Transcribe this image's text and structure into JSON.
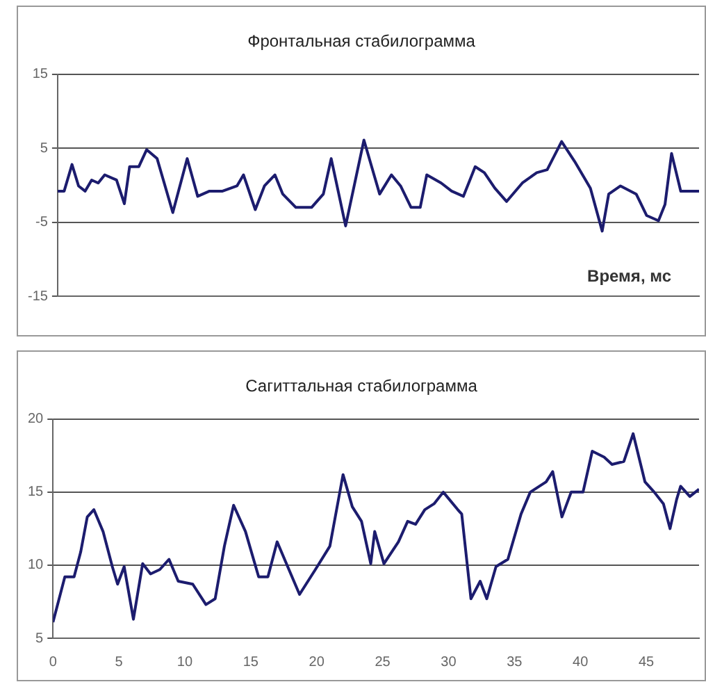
{
  "chart_data": [
    {
      "type": "line",
      "title": "Фронтальная стабилограмма",
      "xlabel": "Время, мс",
      "xlim": [
        0,
        49
      ],
      "ylim": [
        -15,
        15
      ],
      "yticks": [
        -15,
        -5,
        5,
        15
      ],
      "grid": "y",
      "legend": false,
      "tick_labels": "y",
      "marker": "none",
      "x": [
        0,
        0.5,
        1.1,
        1.6,
        2.1,
        2.6,
        3.1,
        3.6,
        4.5,
        5.1,
        5.5,
        6.2,
        6.8,
        7.6,
        8.8,
        9.9,
        10.7,
        11.6,
        12.6,
        13.7,
        14.2,
        15.1,
        15.8,
        16.6,
        17.2,
        18.2,
        19.4,
        20.3,
        20.9,
        22,
        23.4,
        24.6,
        25.5,
        26.2,
        27,
        27.7,
        28.2,
        29.3,
        30.1,
        31,
        31.9,
        32.6,
        33.4,
        34.3,
        35.5,
        36.6,
        37.4,
        38.5,
        39.5,
        40.7,
        41.6,
        42.1,
        43,
        44.2,
        45,
        45.9,
        46.4,
        46.9,
        47.6,
        49
      ],
      "series": [
        {
          "color": "#1c1c6e",
          "values": [
            -0.8,
            -0.8,
            2.8,
            -0.1,
            -0.8,
            0.7,
            0.3,
            1.4,
            0.7,
            -2.5,
            2.5,
            2.5,
            4.8,
            3.6,
            -3.7,
            3.6,
            -1.5,
            -0.8,
            -0.8,
            -0.1,
            1.4,
            -3.3,
            -0.1,
            1.4,
            -1.2,
            -3.0,
            -3.0,
            -1.2,
            3.6,
            -5.5,
            6.1,
            -1.2,
            1.4,
            -0.1,
            -3.0,
            -3.0,
            1.4,
            0.3,
            -0.8,
            -1.5,
            2.5,
            1.7,
            -0.4,
            -2.2,
            0.3,
            1.7,
            2.1,
            5.9,
            3.2,
            -0.4,
            -6.2,
            -1.2,
            -0.1,
            -1.2,
            -4.1,
            -4.8,
            -2.6,
            4.3,
            -0.8,
            -0.8
          ]
        }
      ]
    },
    {
      "type": "line",
      "title": "Сагиттальная стабилограмма",
      "xlim": [
        0,
        49
      ],
      "xticks": [
        0,
        5,
        10,
        15,
        20,
        25,
        30,
        35,
        40,
        45
      ],
      "ylim": [
        5,
        20
      ],
      "yticks": [
        5,
        10,
        15,
        20
      ],
      "grid": "y",
      "legend": false,
      "marker": "none",
      "x": [
        0,
        0.9,
        1.6,
        2.1,
        2.6,
        3.1,
        3.8,
        4.5,
        4.9,
        5.4,
        6.1,
        6.8,
        7.4,
        8.1,
        8.8,
        9.5,
        10.6,
        11.6,
        12.3,
        13,
        13.7,
        14.6,
        15.6,
        16.3,
        17,
        17.8,
        18.7,
        19.9,
        21,
        22,
        22.7,
        23.4,
        24.1,
        24.4,
        25.1,
        26.2,
        26.9,
        27.5,
        28.2,
        28.9,
        29.6,
        30.7,
        31,
        31.7,
        32.4,
        32.9,
        33.6,
        34.5,
        35.5,
        36.2,
        37.4,
        37.9,
        38.6,
        39.3,
        40.2,
        40.9,
        41.8,
        42.4,
        43.3,
        44,
        44.9,
        45.6,
        46.3,
        46.8,
        47.3,
        47.6,
        48.3,
        49
      ],
      "series": [
        {
          "color": "#1c1c6e",
          "values": [
            6.1,
            9.2,
            9.2,
            10.9,
            13.3,
            13.8,
            12.3,
            9.9,
            8.7,
            9.9,
            6.3,
            10.1,
            9.4,
            9.7,
            10.4,
            8.9,
            8.7,
            7.3,
            7.7,
            11.3,
            14.1,
            12.3,
            9.2,
            9.2,
            11.6,
            9.9,
            8.0,
            9.7,
            11.3,
            16.2,
            14.0,
            13.0,
            10.1,
            12.3,
            10.1,
            11.6,
            13.0,
            12.8,
            13.8,
            14.2,
            15.0,
            13.8,
            13.5,
            7.7,
            8.9,
            7.7,
            9.9,
            10.4,
            13.5,
            15.0,
            15.7,
            16.4,
            13.3,
            15.0,
            15.0,
            17.8,
            17.4,
            16.9,
            17.1,
            19.0,
            15.7,
            15.0,
            14.2,
            12.5,
            14.5,
            15.4,
            14.7,
            15.2
          ]
        }
      ]
    }
  ]
}
